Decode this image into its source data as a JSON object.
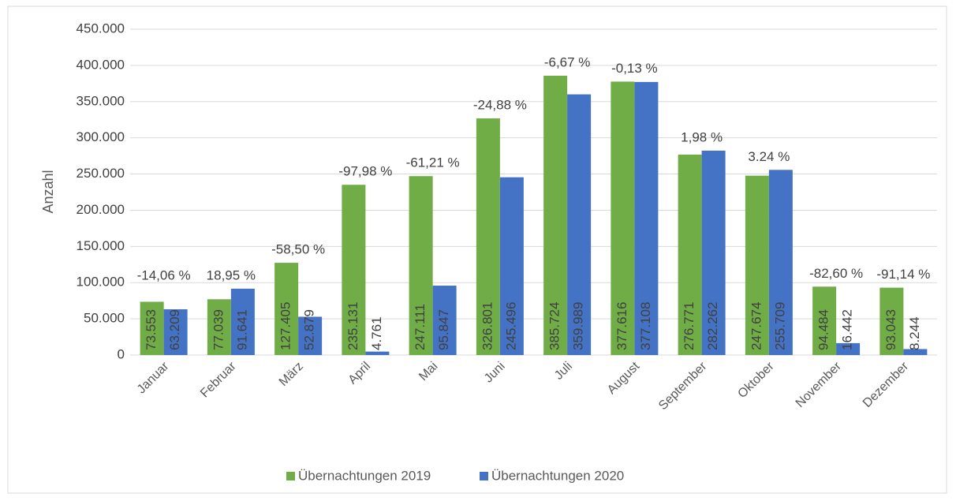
{
  "chart_data": {
    "type": "bar",
    "y_label": "Anzahl",
    "categories": [
      "Januar",
      "Februar",
      "März",
      "April",
      "Mai",
      "Juni",
      "Juli",
      "August",
      "September",
      "Oktober",
      "November",
      "Dezember"
    ],
    "series": [
      {
        "name": "Übernachtungen 2019",
        "color": "#70ad47",
        "values": [
          73553,
          77039,
          127405,
          235131,
          247111,
          326801,
          385724,
          377616,
          276771,
          247674,
          94484,
          93043
        ],
        "value_labels": [
          "73.553",
          "77.039",
          "127.405",
          "235.131",
          "247.111",
          "326.801",
          "385.724",
          "377.616",
          "276.771",
          "247.674",
          "94.484",
          "93.043"
        ]
      },
      {
        "name": "Übernachtungen 2020",
        "color": "#4472c4",
        "values": [
          63209,
          91641,
          52879,
          4761,
          95847,
          245496,
          359989,
          377108,
          282262,
          255709,
          16442,
          8244
        ],
        "value_labels": [
          "63.209",
          "91.641",
          "52.879",
          "4.761",
          "95.847",
          "245.496",
          "359.989",
          "377.108",
          "282.262",
          "255.709",
          "16.442",
          "8.244"
        ]
      }
    ],
    "annotations": [
      "-14,06 %",
      "18,95 %",
      "-58,50 %",
      "-97,98 %",
      "-61,21 %",
      "-24,88 %",
      "-6,67 %",
      "-0,13 %",
      "1,98 %",
      "3.24 %",
      "-82,60 %",
      "-91,14 %"
    ],
    "ylim": [
      0,
      450000
    ],
    "yticks": [
      0,
      {
        "value": 50000,
        "label": "50.000"
      },
      {
        "value": 100000,
        "label": "100.000"
      },
      {
        "value": 150000,
        "label": "150.000"
      },
      {
        "value": 200000,
        "label": "200.000"
      },
      {
        "value": 250000,
        "label": "250.000"
      },
      {
        "value": 300000,
        "label": "300.000"
      },
      {
        "value": 350000,
        "label": "350.000"
      },
      {
        "value": 400000,
        "label": "400.000"
      },
      {
        "value": 450000,
        "label": "450.000"
      }
    ],
    "grid": true,
    "legend": "bottom"
  }
}
